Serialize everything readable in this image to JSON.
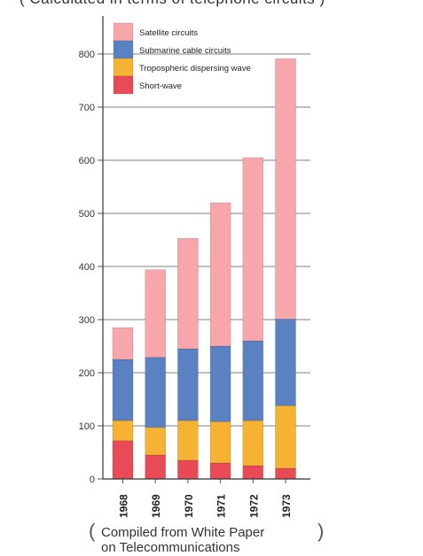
{
  "header": {
    "caption": "( Calculated in terms of telephone circuits )"
  },
  "footer": {
    "line1": "Compiled from White Paper",
    "line2": "on Telecommunications"
  },
  "colors": {
    "satellite": "#f7a7ab",
    "submarine": "#5a82c2",
    "tropospheric": "#f5b233",
    "shortwave": "#e84b55",
    "grid": "#555555"
  },
  "chart_data": {
    "type": "bar",
    "stacked": true,
    "categories": [
      "1968",
      "1969",
      "1970",
      "1971",
      "1972",
      "1973"
    ],
    "series": [
      {
        "name": "Short-wave",
        "color": "#e84b55",
        "values": [
          72,
          45,
          35,
          30,
          25,
          20
        ]
      },
      {
        "name": "Tropospheric dispersing wave",
        "color": "#f5b233",
        "values": [
          38,
          52,
          75,
          78,
          85,
          118
        ]
      },
      {
        "name": "Submarine cable circuits",
        "color": "#5a82c2",
        "values": [
          115,
          132,
          135,
          142,
          150,
          163
        ]
      },
      {
        "name": "Satellite circuits",
        "color": "#f7a7ab",
        "values": [
          60,
          165,
          208,
          270,
          345,
          490
        ]
      }
    ],
    "legend_order": [
      "Satellite circuits",
      "Submarine cable circuits",
      "Tropospheric dispersing wave",
      "Short-wave"
    ],
    "yticks": [
      0,
      100,
      200,
      300,
      400,
      500,
      600,
      700,
      800
    ],
    "ylim": [
      0,
      860
    ],
    "grid": true,
    "legend_position": "top-left"
  }
}
